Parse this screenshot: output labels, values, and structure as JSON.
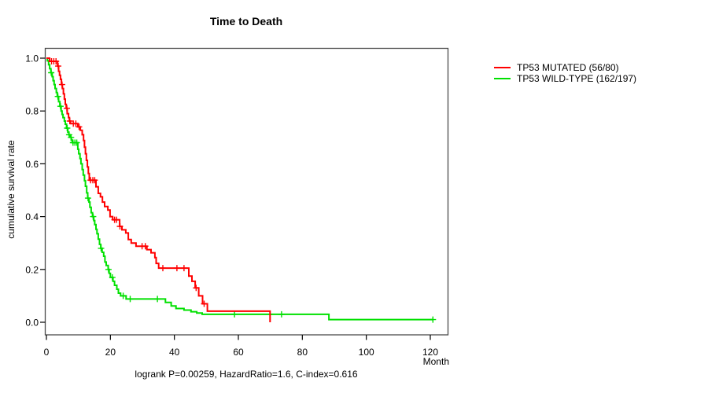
{
  "title": "Time to Death",
  "caption": "logrank P=0.00259, HazardRatio=1.6, C-index=0.616",
  "legend": {
    "items": [
      {
        "label": "TP53 MUTATED (56/80)",
        "color": "#ff0000"
      },
      {
        "label": "TP53 WILD-TYPE (162/197)",
        "color": "#00e000"
      }
    ]
  },
  "axes": {
    "x": {
      "label": "Month",
      "ticks": [
        {
          "value": 0,
          "label": "0"
        },
        {
          "value": 20,
          "label": "20"
        },
        {
          "value": 40,
          "label": "40"
        },
        {
          "value": 60,
          "label": "60"
        },
        {
          "value": 80,
          "label": "80"
        },
        {
          "value": 100,
          "label": "100"
        },
        {
          "value": 120,
          "label": "120"
        }
      ]
    },
    "y": {
      "label": "cumulative survival rate",
      "ticks": [
        {
          "value": 0.0,
          "label": "0.0"
        },
        {
          "value": 0.2,
          "label": "0.2"
        },
        {
          "value": 0.4,
          "label": "0.4"
        },
        {
          "value": 0.6,
          "label": "0.6"
        },
        {
          "value": 0.8,
          "label": "0.8"
        },
        {
          "value": 1.0,
          "label": "1.0"
        }
      ]
    }
  },
  "chart_data": {
    "type": "line",
    "subtype": "kaplan-meier-step",
    "title": "Time to Death",
    "xlabel": "Month",
    "ylabel": "cumulative survival rate",
    "xlim": [
      0,
      125.5
    ],
    "ylim": [
      0,
      1.0
    ],
    "grid": false,
    "legend_position": "right-top-outside",
    "annotation": "logrank P=0.00259, HazardRatio=1.6, C-index=0.616",
    "stats": {
      "logrank_p": 0.00259,
      "hazard_ratio": 1.6,
      "c_index": 0.616
    },
    "series": [
      {
        "name": "TP53 MUTATED (56/80)",
        "events": 56,
        "n": 80,
        "color": "#ff0000",
        "end": 69.9,
        "steps": [
          [
            0,
            1.0
          ],
          [
            1.0,
            0.988
          ],
          [
            3.5,
            0.97
          ],
          [
            3.8,
            0.95
          ],
          [
            4.1,
            0.935
          ],
          [
            4.4,
            0.92
          ],
          [
            4.7,
            0.9
          ],
          [
            5.0,
            0.885
          ],
          [
            5.3,
            0.865
          ],
          [
            5.6,
            0.845
          ],
          [
            5.9,
            0.825
          ],
          [
            6.2,
            0.81
          ],
          [
            6.5,
            0.79
          ],
          [
            6.9,
            0.775
          ],
          [
            7.2,
            0.762
          ],
          [
            7.5,
            0.752
          ],
          [
            9.8,
            0.74
          ],
          [
            10.6,
            0.727
          ],
          [
            11.2,
            0.71
          ],
          [
            11.6,
            0.688
          ],
          [
            11.9,
            0.663
          ],
          [
            12.2,
            0.638
          ],
          [
            12.5,
            0.613
          ],
          [
            12.8,
            0.588
          ],
          [
            13.1,
            0.563
          ],
          [
            13.4,
            0.538
          ],
          [
            15.5,
            0.513
          ],
          [
            16.2,
            0.488
          ],
          [
            16.9,
            0.475
          ],
          [
            17.5,
            0.455
          ],
          [
            18.2,
            0.438
          ],
          [
            19.2,
            0.425
          ],
          [
            19.9,
            0.4
          ],
          [
            20.7,
            0.388
          ],
          [
            22.9,
            0.363
          ],
          [
            23.6,
            0.35
          ],
          [
            24.8,
            0.338
          ],
          [
            25.6,
            0.313
          ],
          [
            26.5,
            0.3
          ],
          [
            28.0,
            0.288
          ],
          [
            31.4,
            0.275
          ],
          [
            32.7,
            0.263
          ],
          [
            33.9,
            0.245
          ],
          [
            34.3,
            0.223
          ],
          [
            35.1,
            0.205
          ],
          [
            44.5,
            0.175
          ],
          [
            45.5,
            0.155
          ],
          [
            46.5,
            0.13
          ],
          [
            47.6,
            0.1
          ],
          [
            48.8,
            0.07
          ],
          [
            50.3,
            0.042
          ],
          [
            69.9,
            0.0
          ]
        ],
        "censor_times": [
          1.6,
          2.3,
          3.0,
          3.7,
          4.9,
          6.4,
          7.3,
          8.4,
          9.2,
          10.2,
          13.8,
          14.5,
          15.1,
          21.3,
          21.9,
          23.0,
          29.9,
          30.9,
          36.4,
          40.8,
          43.0,
          46.8,
          49.3
        ]
      },
      {
        "name": "TP53 WILD-TYPE (162/197)",
        "events": 162,
        "n": 197,
        "color": "#00e000",
        "end": 121.0,
        "steps": [
          [
            0,
            1.0
          ],
          [
            0.3,
            0.99
          ],
          [
            0.7,
            0.975
          ],
          [
            1.0,
            0.96
          ],
          [
            1.4,
            0.945
          ],
          [
            1.8,
            0.93
          ],
          [
            2.1,
            0.915
          ],
          [
            2.4,
            0.9
          ],
          [
            2.7,
            0.885
          ],
          [
            3.1,
            0.87
          ],
          [
            3.4,
            0.855
          ],
          [
            3.8,
            0.835
          ],
          [
            4.2,
            0.818
          ],
          [
            4.6,
            0.8
          ],
          [
            4.9,
            0.787
          ],
          [
            5.2,
            0.775
          ],
          [
            5.6,
            0.762
          ],
          [
            5.9,
            0.75
          ],
          [
            6.3,
            0.735
          ],
          [
            6.7,
            0.72
          ],
          [
            7.0,
            0.71
          ],
          [
            7.4,
            0.7
          ],
          [
            7.8,
            0.69
          ],
          [
            8.1,
            0.68
          ],
          [
            9.8,
            0.655
          ],
          [
            10.1,
            0.638
          ],
          [
            10.5,
            0.62
          ],
          [
            10.8,
            0.6
          ],
          [
            11.2,
            0.578
          ],
          [
            11.5,
            0.557
          ],
          [
            11.9,
            0.536
          ],
          [
            12.2,
            0.515
          ],
          [
            12.6,
            0.49
          ],
          [
            12.9,
            0.47
          ],
          [
            13.3,
            0.455
          ],
          [
            13.6,
            0.435
          ],
          [
            14.0,
            0.415
          ],
          [
            14.4,
            0.4
          ],
          [
            14.8,
            0.385
          ],
          [
            15.1,
            0.37
          ],
          [
            15.5,
            0.352
          ],
          [
            15.8,
            0.335
          ],
          [
            16.2,
            0.315
          ],
          [
            16.6,
            0.295
          ],
          [
            17.0,
            0.28
          ],
          [
            17.4,
            0.265
          ],
          [
            17.9,
            0.25
          ],
          [
            18.3,
            0.228
          ],
          [
            18.7,
            0.215
          ],
          [
            19.3,
            0.2
          ],
          [
            19.6,
            0.185
          ],
          [
            20.0,
            0.17
          ],
          [
            20.8,
            0.155
          ],
          [
            21.3,
            0.14
          ],
          [
            22.0,
            0.125
          ],
          [
            22.5,
            0.11
          ],
          [
            23.2,
            0.1
          ],
          [
            24.9,
            0.088
          ],
          [
            37.2,
            0.075
          ],
          [
            39.0,
            0.062
          ],
          [
            40.5,
            0.052
          ],
          [
            43.0,
            0.046
          ],
          [
            45.2,
            0.04
          ],
          [
            47.0,
            0.035
          ],
          [
            48.7,
            0.03
          ],
          [
            88.3,
            0.01
          ]
        ],
        "censor_times": [
          1.5,
          3.6,
          4.4,
          6.5,
          7.1,
          7.7,
          8.3,
          8.9,
          9.5,
          13.0,
          14.6,
          17.1,
          19.4,
          20.6,
          24.0,
          26.2,
          34.7,
          58.8,
          73.5,
          120.8
        ]
      }
    ]
  }
}
